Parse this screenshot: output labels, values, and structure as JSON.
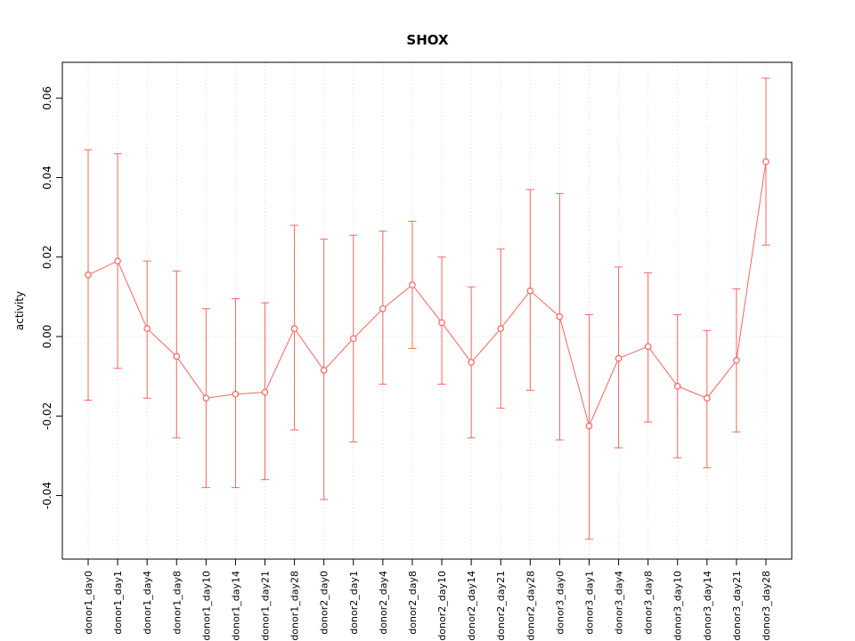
{
  "chart_data": {
    "type": "line",
    "title": "SHOX",
    "xlabel": "",
    "ylabel": "activity",
    "legend": "none",
    "grid": "dotted vertical gridline at each category; dotted horizontal line at y=0",
    "ylim": [
      -0.056,
      0.069
    ],
    "yticks": [
      -0.04,
      -0.02,
      0.0,
      0.02,
      0.04,
      0.06
    ],
    "categories": [
      "donor1_day0",
      "donor1_day1",
      "donor1_day4",
      "donor1_day8",
      "donor1_day10",
      "donor1_day14",
      "donor1_day21",
      "donor1_day28",
      "donor2_day0",
      "donor2_day1",
      "donor2_day4",
      "donor2_day8",
      "donor2_day10",
      "donor2_day14",
      "donor2_day21",
      "donor2_day28",
      "donor3_day0",
      "donor3_day1",
      "donor3_day4",
      "donor3_day8",
      "donor3_day10",
      "donor3_day14",
      "donor3_day21",
      "donor3_day28"
    ],
    "series": [
      {
        "name": "activity",
        "values": [
          0.0155,
          0.019,
          0.002,
          -0.005,
          -0.0155,
          -0.0145,
          -0.014,
          0.002,
          -0.0085,
          -0.0005,
          0.007,
          0.013,
          0.0035,
          -0.0065,
          0.002,
          0.0115,
          0.005,
          -0.0225,
          -0.0055,
          -0.0025,
          -0.0125,
          -0.0155,
          -0.006,
          0.044
        ],
        "lower": [
          -0.016,
          -0.008,
          -0.0155,
          -0.0255,
          -0.038,
          -0.038,
          -0.036,
          -0.0235,
          -0.041,
          -0.0265,
          -0.012,
          -0.003,
          -0.012,
          -0.0255,
          -0.018,
          -0.0135,
          -0.026,
          -0.051,
          -0.028,
          -0.0215,
          -0.0305,
          -0.033,
          -0.024,
          0.023
        ],
        "upper": [
          0.047,
          0.046,
          0.019,
          0.0165,
          0.007,
          0.0095,
          0.0085,
          0.028,
          0.0245,
          0.0255,
          0.0265,
          0.029,
          0.02,
          0.0125,
          0.022,
          0.037,
          0.036,
          0.0055,
          0.0175,
          0.016,
          0.0055,
          0.0015,
          0.012,
          0.065
        ]
      }
    ],
    "colors": {
      "series": "#f4665f",
      "grid": "#dcdcdc",
      "axis": "#000000",
      "background": "#ffffff"
    }
  }
}
